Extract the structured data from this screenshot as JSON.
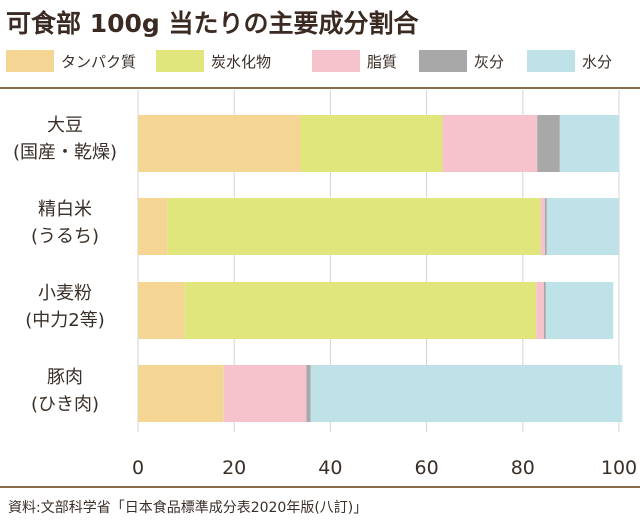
{
  "header": {
    "title": "可食部 100g 当たりの主要成分割合"
  },
  "legend": [
    {
      "label": "タンパク質",
      "color": "#f5d593"
    },
    {
      "label": "炭水化物",
      "color": "#e0e67c"
    },
    {
      "label": "脂質",
      "color": "#f6c2cb"
    },
    {
      "label": "灰分",
      "color": "#a8a8a8"
    },
    {
      "label": "水分",
      "color": "#bfe2e8"
    }
  ],
  "categories": [
    {
      "line1": "大豆",
      "line2": "(国産・乾燥)"
    },
    {
      "line1": "精白米",
      "line2": "(うるち)"
    },
    {
      "line1": "小麦粉",
      "line2": "(中力2等)"
    },
    {
      "line1": "豚肉",
      "line2": "(ひき肉)"
    }
  ],
  "chart_data": {
    "type": "bar",
    "orientation": "horizontal",
    "stacked": true,
    "title": "可食部 100g 当たりの主要成分割合",
    "categories": [
      "大豆(国産・乾燥)",
      "精白米(うるち)",
      "小麦粉(中力2等)",
      "豚肉(ひき肉)"
    ],
    "series": [
      {
        "name": "タンパク質",
        "color": "#f5d593",
        "values": [
          33.8,
          6.1,
          9.7,
          17.7
        ]
      },
      {
        "name": "炭水化物",
        "color": "#e0e67c",
        "values": [
          29.5,
          77.6,
          73.1,
          0.1
        ]
      },
      {
        "name": "脂質",
        "color": "#f6c2cb",
        "values": [
          19.7,
          0.9,
          1.6,
          17.2
        ]
      },
      {
        "name": "灰分",
        "color": "#a8a8a8",
        "values": [
          4.7,
          0.4,
          0.4,
          0.9
        ]
      },
      {
        "name": "水分",
        "color": "#bfe2e8",
        "values": [
          12.4,
          14.9,
          14.0,
          64.8
        ]
      }
    ],
    "xlim": [
      0,
      100
    ],
    "xticks": [
      0,
      20,
      40,
      60,
      80,
      100
    ],
    "grid": "vertical",
    "legend_position": "top"
  },
  "footnote": "資料:文部科学省「日本食品標準成分表2020年版(八訂)」"
}
